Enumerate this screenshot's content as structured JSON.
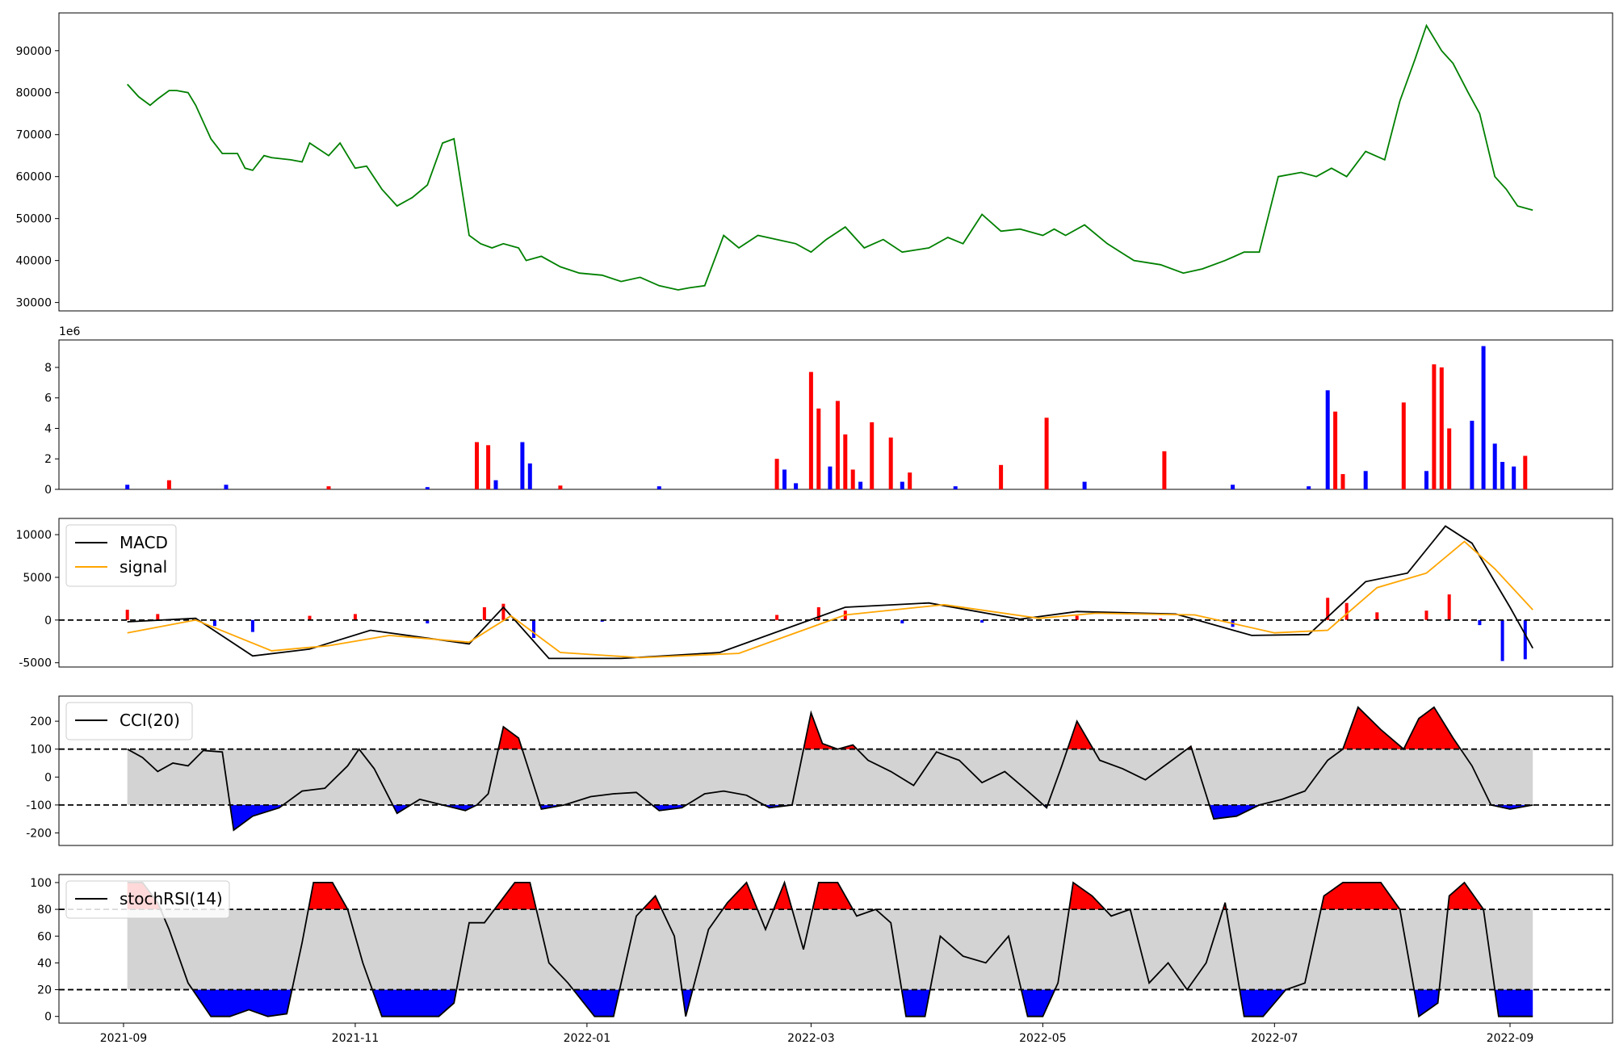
{
  "chart_data": [
    {
      "type": "line",
      "panel": "price",
      "x": [
        "2021-09-02",
        "2021-09-05",
        "2021-09-08",
        "2021-09-10",
        "2021-09-13",
        "2021-09-15",
        "2021-09-18",
        "2021-09-20",
        "2021-09-24",
        "2021-09-27",
        "2021-10-01",
        "2021-10-03",
        "2021-10-05",
        "2021-10-08",
        "2021-10-10",
        "2021-10-15",
        "2021-10-18",
        "2021-10-20",
        "2021-10-25",
        "2021-10-28",
        "2021-11-01",
        "2021-11-04",
        "2021-11-08",
        "2021-11-12",
        "2021-11-16",
        "2021-11-20",
        "2021-11-24",
        "2021-11-27",
        "2021-12-01",
        "2021-12-04",
        "2021-12-07",
        "2021-12-10",
        "2021-12-14",
        "2021-12-16",
        "2021-12-20",
        "2021-12-25",
        "2021-12-30",
        "2022-01-05",
        "2022-01-10",
        "2022-01-15",
        "2022-01-20",
        "2022-01-25",
        "2022-01-28",
        "2022-02-01",
        "2022-02-06",
        "2022-02-10",
        "2022-02-15",
        "2022-02-20",
        "2022-02-25",
        "2022-03-01",
        "2022-03-05",
        "2022-03-10",
        "2022-03-15",
        "2022-03-20",
        "2022-03-25",
        "2022-04-01",
        "2022-04-06",
        "2022-04-10",
        "2022-04-15",
        "2022-04-20",
        "2022-04-25",
        "2022-05-01",
        "2022-05-04",
        "2022-05-07",
        "2022-05-12",
        "2022-05-18",
        "2022-05-25",
        "2022-06-01",
        "2022-06-07",
        "2022-06-12",
        "2022-06-18",
        "2022-06-23",
        "2022-06-27",
        "2022-07-02",
        "2022-07-08",
        "2022-07-12",
        "2022-07-16",
        "2022-07-20",
        "2022-07-25",
        "2022-07-30",
        "2022-08-03",
        "2022-08-07",
        "2022-08-10",
        "2022-08-14",
        "2022-08-17",
        "2022-08-21",
        "2022-08-24",
        "2022-08-28",
        "2022-08-31",
        "2022-09-03",
        "2022-09-07"
      ],
      "values": [
        82000,
        79000,
        77000,
        78500,
        80500,
        80500,
        80000,
        77000,
        69000,
        65500,
        65500,
        62000,
        61500,
        65000,
        64500,
        64000,
        63500,
        68000,
        65000,
        68000,
        62000,
        62500,
        57000,
        53000,
        55000,
        58000,
        68000,
        69000,
        46000,
        44000,
        43000,
        44000,
        43000,
        40000,
        41000,
        38500,
        37000,
        36500,
        35000,
        36000,
        34000,
        33000,
        33500,
        34000,
        46000,
        43000,
        46000,
        45000,
        44000,
        42000,
        45000,
        48000,
        43000,
        45000,
        42000,
        43000,
        45500,
        44000,
        51000,
        47000,
        47500,
        46000,
        47500,
        46000,
        48500,
        44000,
        40000,
        39000,
        37000,
        38000,
        40000,
        42000,
        42000,
        60000,
        61000,
        60000,
        62000,
        60000,
        66000,
        64000,
        78000,
        88000,
        96000,
        90000,
        87000,
        80000,
        75000,
        60000,
        57000,
        53000,
        52000
      ],
      "ylim": [
        28000,
        99000
      ],
      "yticks": [
        30000,
        40000,
        50000,
        60000,
        70000,
        80000,
        90000
      ],
      "color": "#008000"
    },
    {
      "type": "bar",
      "panel": "volume",
      "scale_label": "1e6",
      "ylim": [
        0,
        9.8
      ],
      "yticks": [
        0,
        2,
        4,
        6,
        8
      ],
      "colors": {
        "up": "#ff0000",
        "down": "#0000ff"
      },
      "x": [
        "2021-09-02",
        "2021-09-13",
        "2021-09-28",
        "2021-10-25",
        "2021-11-20",
        "2021-12-03",
        "2021-12-06",
        "2021-12-08",
        "2021-12-15",
        "2021-12-17",
        "2021-12-25",
        "2022-01-20",
        "2022-02-20",
        "2022-02-22",
        "2022-02-25",
        "2022-03-01",
        "2022-03-03",
        "2022-03-06",
        "2022-03-08",
        "2022-03-10",
        "2022-03-12",
        "2022-03-14",
        "2022-03-17",
        "2022-03-22",
        "2022-03-25",
        "2022-03-27",
        "2022-04-08",
        "2022-04-20",
        "2022-05-02",
        "2022-05-12",
        "2022-06-02",
        "2022-06-20",
        "2022-07-10",
        "2022-07-15",
        "2022-07-17",
        "2022-07-19",
        "2022-07-25",
        "2022-08-04",
        "2022-08-10",
        "2022-08-12",
        "2022-08-14",
        "2022-08-16",
        "2022-08-22",
        "2022-08-25",
        "2022-08-28",
        "2022-08-30",
        "2022-09-02",
        "2022-09-05"
      ],
      "values": [
        0.3,
        0.6,
        0.3,
        0.2,
        0.15,
        3.1,
        2.9,
        0.6,
        3.1,
        1.7,
        0.25,
        0.2,
        2.0,
        1.3,
        0.4,
        7.7,
        5.3,
        1.5,
        5.8,
        3.6,
        1.3,
        0.5,
        4.4,
        3.4,
        0.5,
        1.1,
        0.2,
        1.6,
        4.7,
        0.5,
        2.5,
        0.3,
        0.2,
        6.5,
        5.1,
        1.0,
        1.2,
        5.7,
        1.2,
        8.2,
        8.0,
        4.0,
        4.5,
        9.4,
        3.0,
        1.8,
        1.5,
        2.2
      ],
      "directions": [
        "down",
        "up",
        "down",
        "up",
        "down",
        "up",
        "up",
        "down",
        "down",
        "down",
        "up",
        "down",
        "up",
        "down",
        "down",
        "up",
        "up",
        "down",
        "up",
        "up",
        "up",
        "down",
        "up",
        "up",
        "down",
        "up",
        "down",
        "up",
        "up",
        "down",
        "up",
        "down",
        "down",
        "down",
        "up",
        "up",
        "blue",
        "up",
        "down",
        "up",
        "up",
        "up",
        "down",
        "down",
        "down",
        "down",
        "down",
        "up"
      ]
    },
    {
      "type": "line",
      "panel": "macd",
      "series": [
        {
          "name": "MACD",
          "color": "#000000",
          "x": [
            "2021-09-02",
            "2021-09-20",
            "2021-10-05",
            "2021-10-20",
            "2021-11-05",
            "2021-12-01",
            "2021-12-10",
            "2021-12-22",
            "2022-01-10",
            "2022-02-05",
            "2022-03-10",
            "2022-04-01",
            "2022-04-25",
            "2022-05-10",
            "2022-06-05",
            "2022-06-25",
            "2022-07-10",
            "2022-07-25",
            "2022-08-05",
            "2022-08-15",
            "2022-08-22",
            "2022-09-01",
            "2022-09-07"
          ],
          "values": [
            -200,
            200,
            -4200,
            -3400,
            -1200,
            -2800,
            1500,
            -4500,
            -4500,
            -3800,
            1500,
            2000,
            100,
            1000,
            700,
            -1800,
            -1700,
            4500,
            5500,
            11000,
            9000,
            1500,
            -3300
          ]
        },
        {
          "name": "signal",
          "color": "#ffa500",
          "x": [
            "2021-09-02",
            "2021-09-20",
            "2021-10-10",
            "2021-10-25",
            "2021-11-10",
            "2021-12-01",
            "2021-12-12",
            "2021-12-25",
            "2022-01-15",
            "2022-02-10",
            "2022-03-10",
            "2022-04-05",
            "2022-04-30",
            "2022-05-15",
            "2022-06-10",
            "2022-07-01",
            "2022-07-15",
            "2022-07-28",
            "2022-08-10",
            "2022-08-20",
            "2022-08-28",
            "2022-09-07"
          ],
          "values": [
            -1500,
            0,
            -3600,
            -3000,
            -1800,
            -2600,
            500,
            -3800,
            -4400,
            -3900,
            600,
            1800,
            200,
            800,
            600,
            -1500,
            -1200,
            3800,
            5500,
            9200,
            6000,
            1200
          ]
        }
      ],
      "histogram": {
        "x": [
          "2021-09-02",
          "2021-09-10",
          "2021-09-25",
          "2021-10-05",
          "2021-10-20",
          "2021-11-01",
          "2021-11-20",
          "2021-12-05",
          "2021-12-10",
          "2021-12-18",
          "2022-01-05",
          "2022-02-20",
          "2022-03-03",
          "2022-03-10",
          "2022-03-25",
          "2022-04-15",
          "2022-05-10",
          "2022-06-01",
          "2022-06-20",
          "2022-07-15",
          "2022-07-20",
          "2022-07-28",
          "2022-08-10",
          "2022-08-16",
          "2022-08-24",
          "2022-08-30",
          "2022-09-05"
        ],
        "values": [
          1200,
          700,
          -700,
          -1400,
          500,
          700,
          -400,
          1500,
          1900,
          -2100,
          -200,
          600,
          1500,
          1100,
          -400,
          -300,
          500,
          200,
          -800,
          2600,
          2000,
          900,
          1100,
          3000,
          -600,
          -4800,
          -4600
        ]
      },
      "ylim": [
        -5500,
        11900
      ],
      "yticks": [
        -5000,
        0,
        5000,
        10000
      ],
      "reference_line": 0
    },
    {
      "type": "line",
      "panel": "cci",
      "series": [
        {
          "name": "CCI(20)",
          "color": "#000000",
          "x": [
            "2021-09-02",
            "2021-09-06",
            "2021-09-10",
            "2021-09-14",
            "2021-09-18",
            "2021-09-22",
            "2021-09-27",
            "2021-09-30",
            "2021-10-05",
            "2021-10-12",
            "2021-10-18",
            "2021-10-24",
            "2021-10-30",
            "2021-11-02",
            "2021-11-06",
            "2021-11-12",
            "2021-11-18",
            "2021-11-24",
            "2021-11-30",
            "2021-12-03",
            "2021-12-06",
            "2021-12-10",
            "2021-12-14",
            "2021-12-20",
            "2021-12-26",
            "2022-01-02",
            "2022-01-08",
            "2022-01-14",
            "2022-01-20",
            "2022-01-26",
            "2022-02-01",
            "2022-02-06",
            "2022-02-12",
            "2022-02-18",
            "2022-02-24",
            "2022-03-01",
            "2022-03-04",
            "2022-03-08",
            "2022-03-12",
            "2022-03-16",
            "2022-03-22",
            "2022-03-28",
            "2022-04-03",
            "2022-04-09",
            "2022-04-15",
            "2022-04-21",
            "2022-04-27",
            "2022-05-02",
            "2022-05-06",
            "2022-05-10",
            "2022-05-16",
            "2022-05-22",
            "2022-05-28",
            "2022-06-03",
            "2022-06-09",
            "2022-06-15",
            "2022-06-21",
            "2022-06-27",
            "2022-07-03",
            "2022-07-09",
            "2022-07-15",
            "2022-07-19",
            "2022-07-23",
            "2022-07-29",
            "2022-08-04",
            "2022-08-08",
            "2022-08-12",
            "2022-08-17",
            "2022-08-22",
            "2022-08-27",
            "2022-09-01",
            "2022-09-07"
          ],
          "values": [
            100,
            70,
            20,
            50,
            40,
            95,
            90,
            -190,
            -140,
            -110,
            -50,
            -40,
            40,
            100,
            30,
            -130,
            -80,
            -100,
            -120,
            -100,
            -60,
            180,
            140,
            -115,
            -100,
            -70,
            -60,
            -55,
            -120,
            -110,
            -60,
            -50,
            -65,
            -110,
            -100,
            230,
            120,
            100,
            115,
            60,
            20,
            -30,
            90,
            60,
            -20,
            20,
            -50,
            -110,
            40,
            200,
            60,
            30,
            -10,
            50,
            110,
            -150,
            -140,
            -100,
            -80,
            -50,
            60,
            100,
            250,
            170,
            100,
            210,
            250,
            140,
            40,
            -100,
            -115,
            -100
          ]
        }
      ],
      "ylim": [
        -245,
        290
      ],
      "yticks": [
        -200,
        -100,
        0,
        100,
        200
      ],
      "bands": [
        -100,
        100
      ],
      "fill_colors": {
        "overbought": "#ff0000",
        "oversold": "#0000ff",
        "band": "#d3d3d3"
      }
    },
    {
      "type": "line",
      "panel": "stochrsi",
      "series": [
        {
          "name": "stochRSI(14)",
          "color": "#000000",
          "x": [
            "2021-09-02",
            "2021-09-06",
            "2021-09-10",
            "2021-09-13",
            "2021-09-18",
            "2021-09-24",
            "2021-09-29",
            "2021-10-04",
            "2021-10-09",
            "2021-10-14",
            "2021-10-18",
            "2021-10-21",
            "2021-10-26",
            "2021-10-30",
            "2021-11-03",
            "2021-11-08",
            "2021-11-13",
            "2021-11-18",
            "2021-11-23",
            "2021-11-27",
            "2021-12-01",
            "2021-12-05",
            "2021-12-13",
            "2021-12-17",
            "2021-12-22",
            "2021-12-27",
            "2022-01-03",
            "2022-01-08",
            "2022-01-14",
            "2022-01-19",
            "2022-01-24",
            "2022-01-27",
            "2022-02-02",
            "2022-02-07",
            "2022-02-12",
            "2022-02-17",
            "2022-02-22",
            "2022-02-27",
            "2022-03-03",
            "2022-03-08",
            "2022-03-13",
            "2022-03-18",
            "2022-03-22",
            "2022-03-26",
            "2022-03-31",
            "2022-04-04",
            "2022-04-10",
            "2022-04-16",
            "2022-04-22",
            "2022-04-27",
            "2022-05-01",
            "2022-05-05",
            "2022-05-09",
            "2022-05-14",
            "2022-05-19",
            "2022-05-24",
            "2022-05-29",
            "2022-06-03",
            "2022-06-08",
            "2022-06-13",
            "2022-06-18",
            "2022-06-23",
            "2022-06-28",
            "2022-07-04",
            "2022-07-09",
            "2022-07-14",
            "2022-07-19",
            "2022-07-24",
            "2022-07-29",
            "2022-08-03",
            "2022-08-08",
            "2022-08-13",
            "2022-08-16",
            "2022-08-20",
            "2022-08-25",
            "2022-08-29",
            "2022-09-03",
            "2022-09-07"
          ],
          "values": [
            100,
            100,
            85,
            65,
            25,
            0,
            0,
            5,
            0,
            2,
            55,
            100,
            100,
            80,
            40,
            0,
            0,
            0,
            0,
            10,
            70,
            70,
            100,
            100,
            40,
            25,
            0,
            0,
            75,
            90,
            60,
            0,
            65,
            85,
            100,
            65,
            100,
            50,
            100,
            100,
            75,
            80,
            70,
            0,
            0,
            60,
            45,
            40,
            60,
            0,
            0,
            25,
            100,
            90,
            75,
            80,
            25,
            40,
            20,
            40,
            85,
            0,
            0,
            20,
            25,
            90,
            100,
            100,
            100,
            80,
            0,
            10,
            90,
            100,
            80,
            0,
            0,
            0
          ]
        }
      ],
      "ylim": [
        -5,
        106
      ],
      "yticks": [
        0,
        20,
        40,
        60,
        80,
        100
      ],
      "bands": [
        20,
        80
      ],
      "fill_colors": {
        "overbought": "#ff0000",
        "oversold": "#0000ff",
        "band": "#d3d3d3"
      }
    }
  ],
  "x_axis": {
    "start": "2021-08-15",
    "end": "2022-09-28",
    "ticks": [
      {
        "date": "2021-09-01",
        "label": "2021-09"
      },
      {
        "date": "2021-11-01",
        "label": "2021-11"
      },
      {
        "date": "2022-01-01",
        "label": "2022-01"
      },
      {
        "date": "2022-03-01",
        "label": "2022-03"
      },
      {
        "date": "2022-05-01",
        "label": "2022-05"
      },
      {
        "date": "2022-07-01",
        "label": "2022-07"
      },
      {
        "date": "2022-09-01",
        "label": "2022-09"
      }
    ]
  }
}
